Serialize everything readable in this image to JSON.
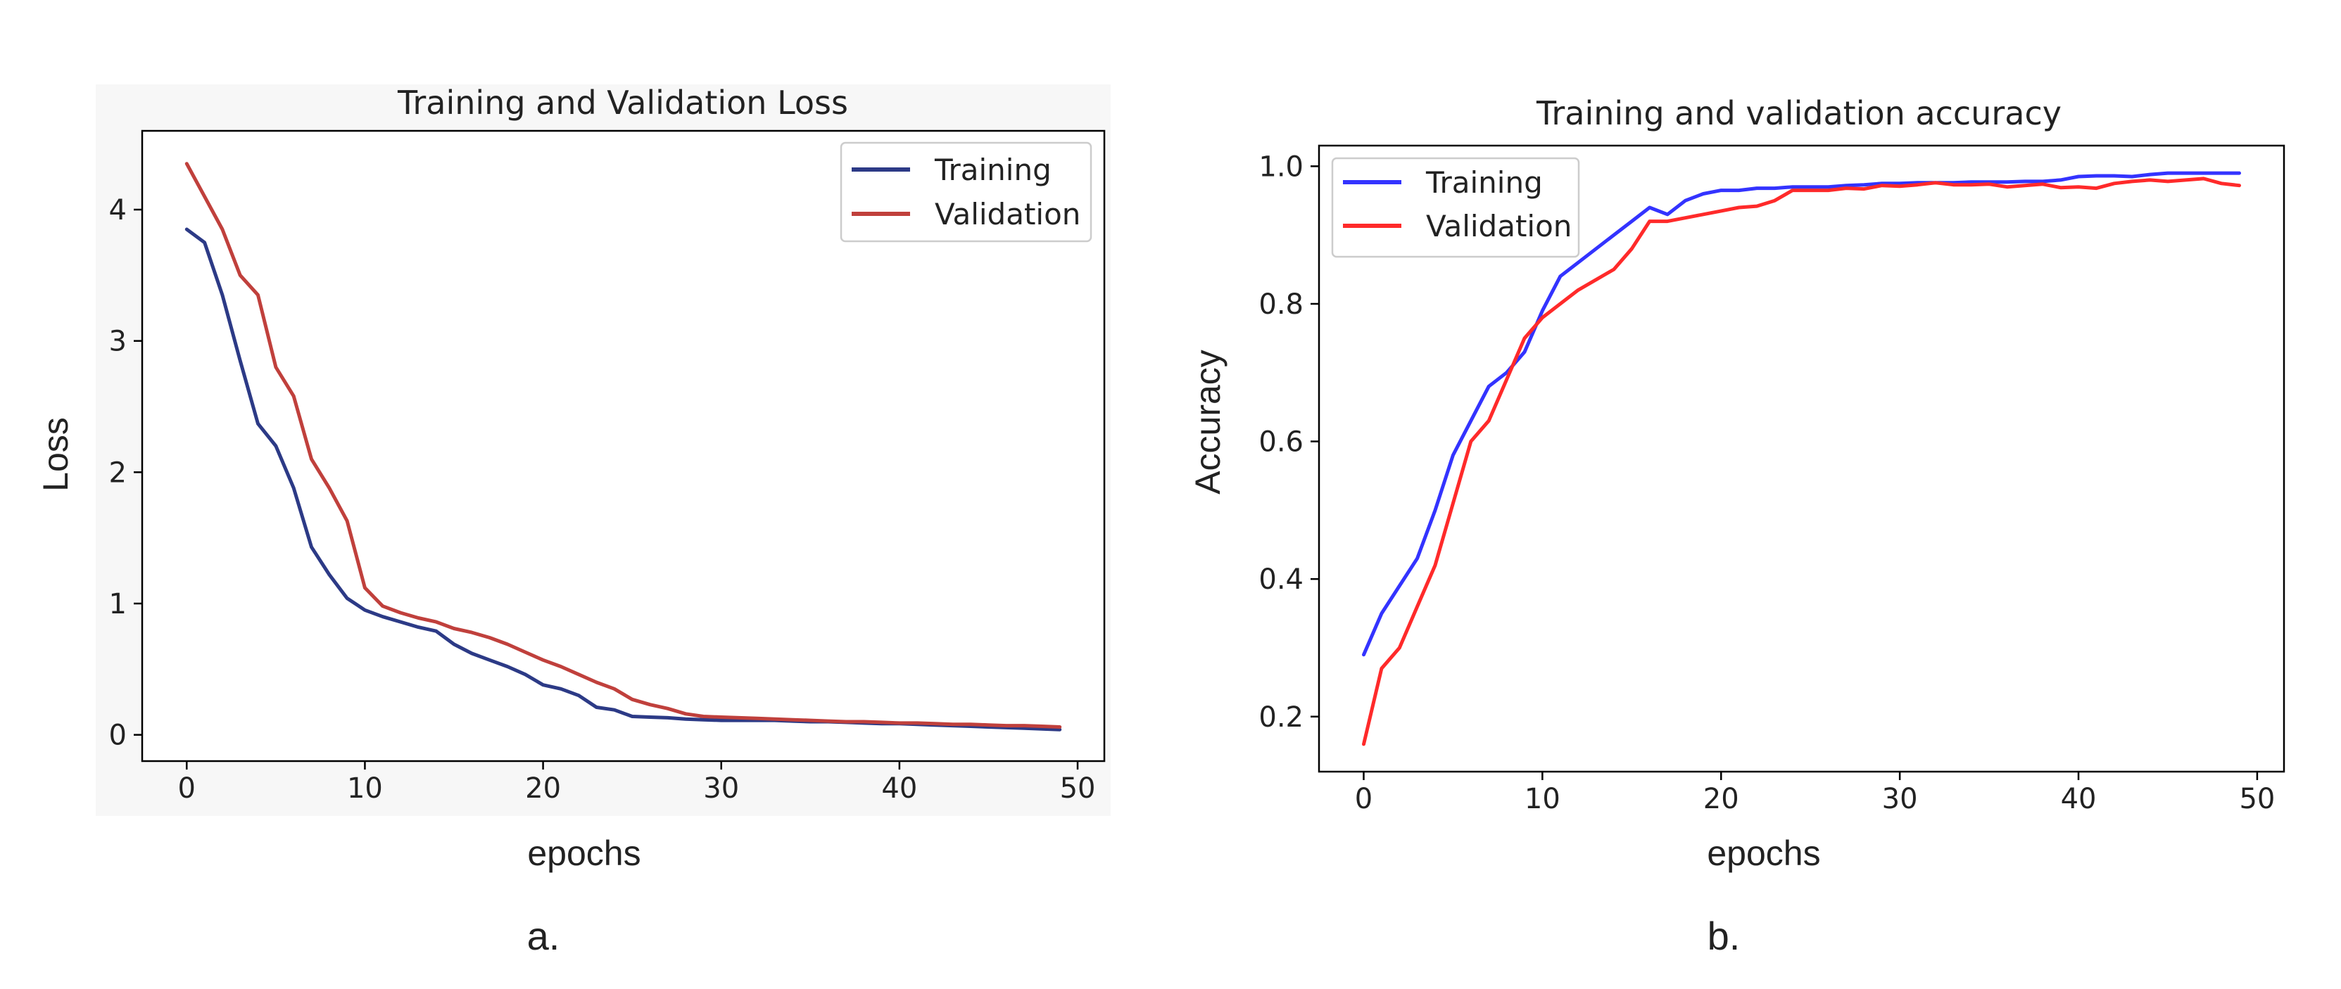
{
  "colors": {
    "loss_training": "#2c3a86",
    "loss_validation": "#c0403c",
    "acc_training": "#3333ff",
    "acc_validation": "#ff2a2a",
    "loss_panel_bg": "#f7f7f7"
  },
  "chart_data": [
    {
      "id": "loss",
      "type": "line",
      "title": "Training and Validation Loss",
      "xlabel": "epochs",
      "ylabel": "Loss",
      "panel_label": "a.",
      "xlim": [
        -2.5,
        51.5
      ],
      "ylim": [
        -0.2,
        4.6
      ],
      "xticks": [
        0,
        10,
        20,
        30,
        40,
        50
      ],
      "xtick_labels": [
        "0",
        "10",
        "20",
        "30",
        "40",
        "50"
      ],
      "yticks": [
        0,
        1,
        2,
        3,
        4
      ],
      "ytick_labels": [
        "0",
        "1",
        "2",
        "3",
        "4"
      ],
      "legend": {
        "position": "top-right",
        "entries": [
          "Training",
          "Validation"
        ]
      },
      "x": [
        0,
        1,
        2,
        3,
        4,
        5,
        6,
        7,
        8,
        9,
        10,
        11,
        12,
        13,
        14,
        15,
        16,
        17,
        18,
        19,
        20,
        21,
        22,
        23,
        24,
        25,
        26,
        27,
        28,
        29,
        30,
        31,
        32,
        33,
        34,
        35,
        36,
        37,
        38,
        39,
        40,
        41,
        42,
        43,
        44,
        45,
        46,
        47,
        48,
        49
      ],
      "series": [
        {
          "name": "Training",
          "color": "#2c3a86",
          "values": [
            3.85,
            3.75,
            3.35,
            2.85,
            2.37,
            2.2,
            1.88,
            1.43,
            1.22,
            1.04,
            0.95,
            0.9,
            0.86,
            0.82,
            0.79,
            0.69,
            0.62,
            0.57,
            0.52,
            0.46,
            0.38,
            0.35,
            0.3,
            0.21,
            0.19,
            0.14,
            0.135,
            0.13,
            0.12,
            0.115,
            0.11,
            0.11,
            0.11,
            0.11,
            0.105,
            0.1,
            0.1,
            0.095,
            0.09,
            0.085,
            0.085,
            0.08,
            0.075,
            0.07,
            0.065,
            0.06,
            0.055,
            0.05,
            0.045,
            0.04
          ]
        },
        {
          "name": "Validation",
          "color": "#c0403c",
          "values": [
            4.35,
            4.1,
            3.85,
            3.5,
            3.35,
            2.8,
            2.58,
            2.1,
            1.88,
            1.63,
            1.12,
            0.98,
            0.93,
            0.89,
            0.86,
            0.81,
            0.78,
            0.74,
            0.69,
            0.63,
            0.57,
            0.52,
            0.46,
            0.4,
            0.35,
            0.27,
            0.23,
            0.2,
            0.16,
            0.14,
            0.135,
            0.13,
            0.125,
            0.12,
            0.115,
            0.11,
            0.105,
            0.1,
            0.1,
            0.095,
            0.09,
            0.09,
            0.085,
            0.08,
            0.08,
            0.075,
            0.07,
            0.07,
            0.065,
            0.06
          ]
        }
      ]
    },
    {
      "id": "accuracy",
      "type": "line",
      "title": "Training and validation accuracy",
      "xlabel": "epochs",
      "ylabel": "Accuracy",
      "panel_label": "b.",
      "xlim": [
        -2.5,
        51.5
      ],
      "ylim": [
        0.12,
        1.03
      ],
      "xticks": [
        0,
        10,
        20,
        30,
        40,
        50
      ],
      "xtick_labels": [
        "0",
        "10",
        "20",
        "30",
        "40",
        "50"
      ],
      "yticks": [
        0.2,
        0.4,
        0.6,
        0.8,
        1.0
      ],
      "ytick_labels": [
        "0.2",
        "0.4",
        "0.6",
        "0.8",
        "1.0"
      ],
      "legend": {
        "position": "top-left",
        "entries": [
          "Training",
          "Validation"
        ]
      },
      "x": [
        0,
        1,
        2,
        3,
        4,
        5,
        6,
        7,
        8,
        9,
        10,
        11,
        12,
        13,
        14,
        15,
        16,
        17,
        18,
        19,
        20,
        21,
        22,
        23,
        24,
        25,
        26,
        27,
        28,
        29,
        30,
        31,
        32,
        33,
        34,
        35,
        36,
        37,
        38,
        39,
        40,
        41,
        42,
        43,
        44,
        45,
        46,
        47,
        48,
        49
      ],
      "series": [
        {
          "name": "Training",
          "color": "#3333ff",
          "values": [
            0.29,
            0.35,
            0.39,
            0.43,
            0.5,
            0.58,
            0.63,
            0.68,
            0.7,
            0.73,
            0.79,
            0.84,
            0.86,
            0.88,
            0.9,
            0.92,
            0.94,
            0.93,
            0.95,
            0.96,
            0.965,
            0.965,
            0.968,
            0.968,
            0.97,
            0.97,
            0.97,
            0.972,
            0.973,
            0.975,
            0.975,
            0.976,
            0.976,
            0.976,
            0.977,
            0.977,
            0.977,
            0.978,
            0.978,
            0.98,
            0.985,
            0.986,
            0.986,
            0.985,
            0.988,
            0.99,
            0.99,
            0.99,
            0.99,
            0.99
          ]
        },
        {
          "name": "Validation",
          "color": "#ff2a2a",
          "values": [
            0.16,
            0.27,
            0.3,
            0.36,
            0.42,
            0.51,
            0.6,
            0.63,
            0.69,
            0.75,
            0.78,
            0.8,
            0.82,
            0.835,
            0.85,
            0.88,
            0.92,
            0.92,
            0.925,
            0.93,
            0.935,
            0.94,
            0.942,
            0.95,
            0.965,
            0.965,
            0.965,
            0.968,
            0.967,
            0.972,
            0.971,
            0.973,
            0.976,
            0.973,
            0.973,
            0.974,
            0.97,
            0.972,
            0.974,
            0.969,
            0.97,
            0.968,
            0.975,
            0.978,
            0.98,
            0.978,
            0.98,
            0.982,
            0.975,
            0.972
          ]
        }
      ]
    }
  ]
}
